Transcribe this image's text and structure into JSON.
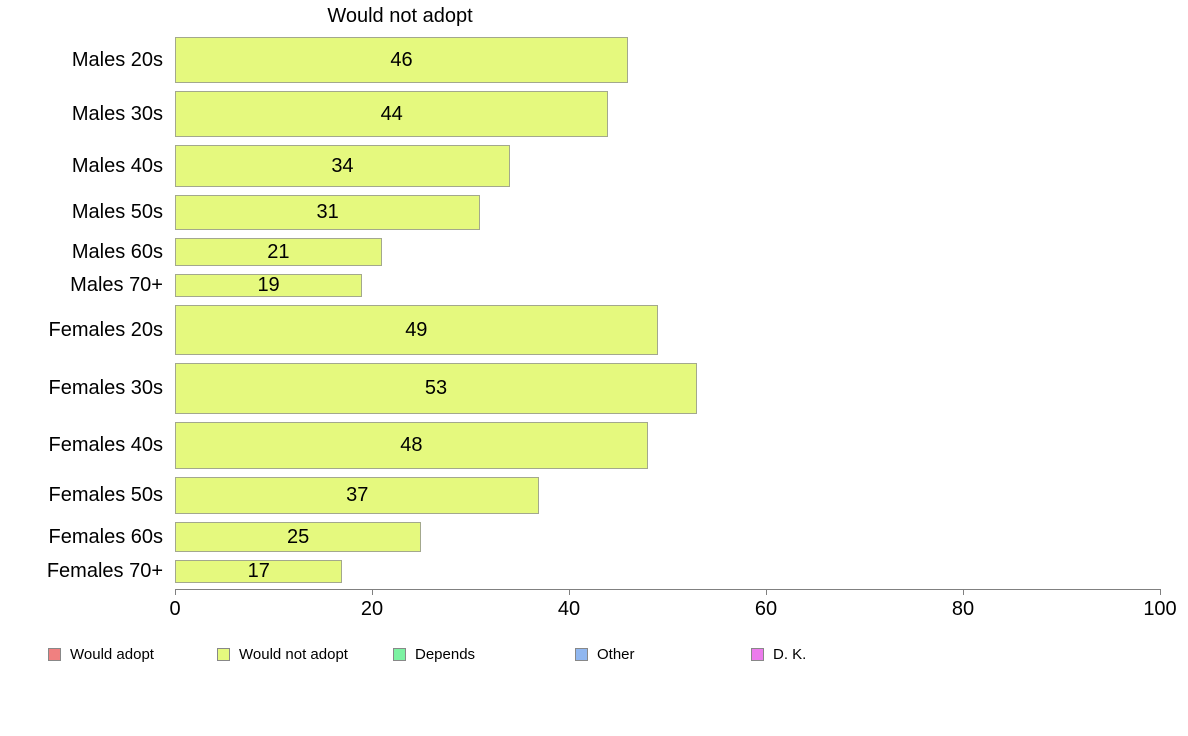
{
  "chart_data": {
    "type": "bar",
    "orientation": "horizontal",
    "title": "Would not adopt",
    "categories": [
      "Males 20s",
      "Males 30s",
      "Males 40s",
      "Males 50s",
      "Males 60s",
      "Males 70+",
      "Females 20s",
      "Females 30s",
      "Females 40s",
      "Females 50s",
      "Females 60s",
      "Females 70+"
    ],
    "values": [
      46,
      44,
      34,
      31,
      21,
      19,
      49,
      53,
      48,
      37,
      25,
      17
    ],
    "bar_thickness_px": [
      46,
      46,
      42,
      35,
      28,
      23,
      50,
      51,
      47,
      37,
      30,
      23
    ],
    "xlabel": "",
    "ylabel": "",
    "xlim": [
      0,
      100
    ],
    "x_ticks": [
      0,
      20,
      40,
      60,
      80,
      100
    ],
    "grid": false,
    "legend_position": "bottom",
    "colors": {
      "bar_fill": "#e5f97e",
      "bar_border": "#a3a88d",
      "axis": "#808080",
      "text": "#000000"
    }
  },
  "legend": {
    "items": [
      {
        "label": "Would adopt",
        "color": "#f08080"
      },
      {
        "label": "Would not adopt",
        "color": "#e5f97e"
      },
      {
        "label": "Depends",
        "color": "#7cf2a2"
      },
      {
        "label": "Other",
        "color": "#90b7f0"
      },
      {
        "label": "D. K.",
        "color": "#ec7bec"
      }
    ]
  }
}
